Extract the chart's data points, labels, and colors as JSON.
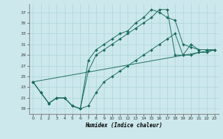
{
  "title": "",
  "xlabel": "Humidex (Indice chaleur)",
  "bg_color": "#cce8ec",
  "grid_color": "#aad4da",
  "line_color": "#1a6b5a",
  "xlim": [
    -0.5,
    23.5
  ],
  "ylim": [
    18.0,
    38.5
  ],
  "xticks": [
    0,
    1,
    2,
    3,
    4,
    5,
    6,
    7,
    8,
    9,
    10,
    11,
    12,
    13,
    14,
    15,
    16,
    17,
    18,
    19,
    20,
    21,
    22,
    23
  ],
  "yticks": [
    19,
    21,
    23,
    25,
    27,
    29,
    31,
    33,
    35,
    37
  ],
  "lines": [
    {
      "x": [
        0,
        1,
        2,
        3,
        4,
        5,
        6,
        7,
        8,
        9,
        10,
        11,
        12,
        13,
        14,
        15,
        16,
        17,
        18,
        19,
        20,
        21,
        22,
        23
      ],
      "y": [
        24,
        22,
        20,
        21,
        21,
        19.5,
        19,
        28,
        30,
        31,
        32,
        33,
        33.5,
        35,
        36,
        37.5,
        37,
        36,
        35.5,
        31,
        30.5,
        30,
        30,
        30
      ],
      "marker": true
    },
    {
      "x": [
        0,
        1,
        2,
        3,
        4,
        5,
        6,
        7,
        8,
        9,
        10,
        11,
        12,
        13,
        14,
        15,
        16,
        17,
        18,
        19,
        20,
        21,
        22,
        23
      ],
      "y": [
        24,
        22,
        20,
        21,
        21,
        19.5,
        19,
        26,
        29,
        30,
        31,
        32,
        33,
        34,
        35,
        36,
        37.5,
        37.5,
        29,
        29,
        31,
        30,
        30,
        30
      ],
      "marker": true
    },
    {
      "x": [
        0,
        23
      ],
      "y": [
        24,
        30
      ],
      "marker": false
    },
    {
      "x": [
        0,
        2,
        3,
        4,
        5,
        6,
        7,
        8,
        9,
        10,
        11,
        12,
        13,
        14,
        15,
        16,
        17,
        18,
        19,
        20,
        21,
        22,
        23
      ],
      "y": [
        24,
        20,
        21,
        21,
        19.5,
        19,
        19.5,
        22,
        24,
        25,
        26,
        27,
        28,
        29,
        30,
        31,
        32,
        33,
        29,
        29,
        29.5,
        29.5,
        30
      ],
      "marker": true
    }
  ]
}
